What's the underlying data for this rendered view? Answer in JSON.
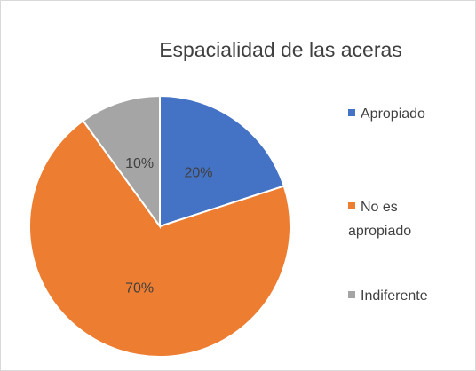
{
  "chart_data": {
    "type": "pie",
    "title": "Espacialidad de las aceras",
    "categories": [
      "Apropiado",
      "No es apropiado",
      "Indiferente"
    ],
    "values": [
      20,
      70,
      10
    ],
    "value_labels": [
      "20%",
      "70%",
      "10%"
    ],
    "colors": [
      "#4472c4",
      "#ed7d31",
      "#a5a5a5"
    ],
    "legend": "right"
  }
}
